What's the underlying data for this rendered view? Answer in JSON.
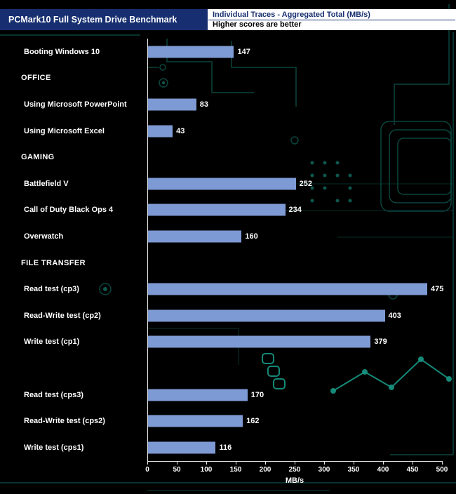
{
  "header": {
    "title": "PCMark10 Full System Drive Benchmark",
    "legend_line1": "Individual Traces - Aggregated Total (MB/s)",
    "legend_line2": "Higher scores are better"
  },
  "colors": {
    "bar": "#7e9ad4",
    "header_bg": "#172f70",
    "circuit_trace": "#0c5049",
    "circuit_bright": "#17907e",
    "axis": "#e9e9e9"
  },
  "chart_data": {
    "type": "bar",
    "orientation": "horizontal",
    "title": "PCMark10 Full System Drive Benchmark",
    "subtitle": "Individual Traces - Aggregated Total (MB/s)",
    "note": "Higher scores are better",
    "xlabel": "MB/s",
    "ylabel": "",
    "xlim": [
      0,
      500
    ],
    "xticks": [
      0,
      50,
      100,
      150,
      200,
      250,
      300,
      350,
      400,
      450,
      500
    ],
    "grid": false,
    "legend_position": "top-right",
    "rows": [
      {
        "kind": "bar",
        "label": "Booting Windows 10",
        "value": 147
      },
      {
        "kind": "header",
        "label": "OFFICE"
      },
      {
        "kind": "bar",
        "label": "Using Microsoft PowerPoint",
        "value": 83
      },
      {
        "kind": "bar",
        "label": "Using Microsoft Excel",
        "value": 43
      },
      {
        "kind": "header",
        "label": "GAMING"
      },
      {
        "kind": "bar",
        "label": "Battlefield V",
        "value": 252
      },
      {
        "kind": "bar",
        "label": "Call of Duty Black Ops 4",
        "value": 234
      },
      {
        "kind": "bar",
        "label": "Overwatch",
        "value": 160
      },
      {
        "kind": "header",
        "label": "FILE TRANSFER"
      },
      {
        "kind": "bar",
        "label": "Read test (cp3)",
        "value": 475
      },
      {
        "kind": "bar",
        "label": "Read-Write test (cp2)",
        "value": 403
      },
      {
        "kind": "bar",
        "label": "Write test (cp1)",
        "value": 379
      },
      {
        "kind": "spacer",
        "label": ""
      },
      {
        "kind": "bar",
        "label": "Read test (cps3)",
        "value": 170
      },
      {
        "kind": "bar",
        "label": "Read-Write test (cps2)",
        "value": 162
      },
      {
        "kind": "bar",
        "label": "Write test (cps1)",
        "value": 116
      }
    ]
  }
}
